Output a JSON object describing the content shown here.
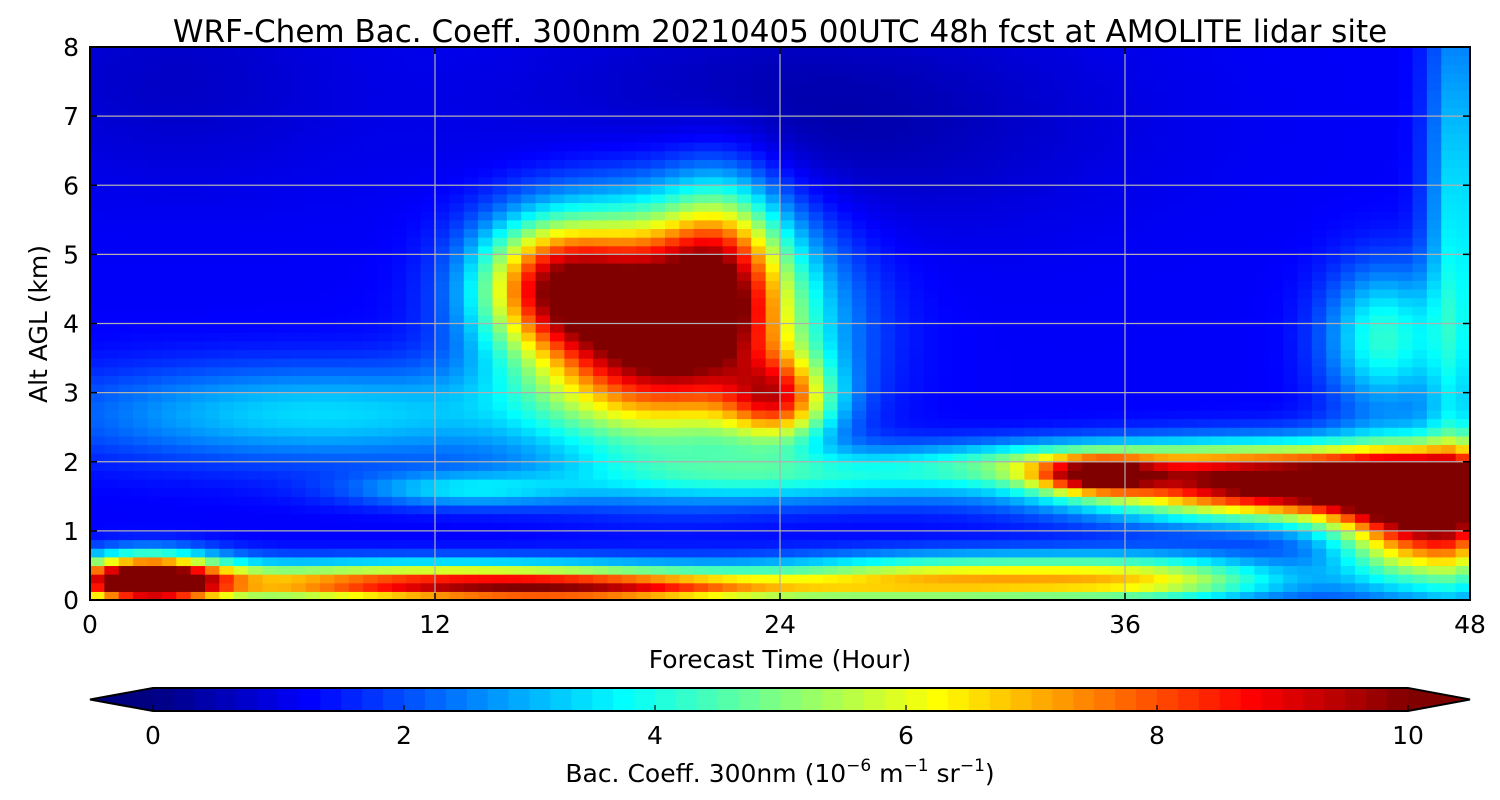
{
  "chart_data": {
    "type": "heatmap",
    "title": "WRF-Chem Bac. Coeff. 300nm  20210405 00UTC 48h fcst at AMOLITE lidar site",
    "xlabel": "Forecast Time (Hour)",
    "ylabel": "Alt AGL (km)",
    "xlim": [
      0,
      48
    ],
    "ylim": [
      0,
      8
    ],
    "xticks": [
      0,
      12,
      24,
      36,
      48
    ],
    "yticks": [
      0,
      1,
      2,
      3,
      4,
      5,
      6,
      7,
      8
    ],
    "grid": true,
    "colormap": "jet",
    "colorbar": {
      "label_main": "Bac. Coeff. 300nm  (10",
      "label_exp1": "−6",
      "label_unit1": " m",
      "label_exp2": "−1",
      "label_unit2": " sr",
      "label_exp3": "−1",
      "label_close": ")",
      "range": [
        0,
        10
      ],
      "ticks": [
        0,
        2,
        4,
        6,
        8,
        10
      ],
      "extend": "both"
    },
    "field_features": [
      {
        "kind": "background",
        "value": 1.2
      },
      {
        "kind": "blob",
        "t": 25,
        "z": 7.0,
        "dt": 10,
        "dz": 1.6,
        "value": -0.8
      },
      {
        "kind": "blob",
        "t": 3,
        "z": 7.5,
        "dt": 6,
        "dz": 1.5,
        "value": -0.5
      },
      {
        "kind": "blob",
        "t": 12,
        "z": 0.25,
        "dt": 12,
        "dz": 0.3,
        "value": 6.5
      },
      {
        "kind": "blob",
        "t": 2,
        "z": 0.3,
        "dt": 2.5,
        "dz": 0.35,
        "value": 9.0
      },
      {
        "kind": "blob",
        "t": 18,
        "z": 0.15,
        "dt": 8,
        "dz": 0.2,
        "value": 3.5
      },
      {
        "kind": "blob",
        "t": 30,
        "z": 0.3,
        "dt": 6,
        "dz": 0.35,
        "value": 4.5
      },
      {
        "kind": "blob",
        "t": 37,
        "z": 0.3,
        "dt": 5,
        "dz": 0.35,
        "value": 4.0
      },
      {
        "kind": "blob",
        "t": 8,
        "z": 2.7,
        "dt": 9,
        "dz": 0.7,
        "value": 2.2
      },
      {
        "kind": "blob",
        "t": 13,
        "z": 1.6,
        "dt": 4,
        "dz": 0.25,
        "value": 2.0
      },
      {
        "kind": "blob",
        "t": 25,
        "z": 1.8,
        "dt": 8,
        "dz": 0.4,
        "value": 2.5
      },
      {
        "kind": "blob",
        "t": 34,
        "z": 2.0,
        "dt": 5,
        "dz": 0.3,
        "value": 2.5
      },
      {
        "kind": "blob",
        "t": 20,
        "z": 4.0,
        "dt": 4.5,
        "dz": 1.5,
        "value": 10.5
      },
      {
        "kind": "blob",
        "t": 16,
        "z": 4.6,
        "dt": 2.5,
        "dz": 0.9,
        "value": 5.0
      },
      {
        "kind": "blob",
        "t": 22,
        "z": 5.0,
        "dt": 2.0,
        "dz": 1.2,
        "value": 3.0
      },
      {
        "kind": "blob",
        "t": 24,
        "z": 2.9,
        "dt": 1.8,
        "dz": 0.6,
        "value": 5.0
      },
      {
        "kind": "blob",
        "t": 42,
        "z": 1.7,
        "dt": 7,
        "dz": 0.5,
        "value": 10.0
      },
      {
        "kind": "blob",
        "t": 46.5,
        "z": 1.2,
        "dt": 3.0,
        "dz": 0.9,
        "value": 8.0
      },
      {
        "kind": "blob",
        "t": 35,
        "z": 1.8,
        "dt": 2.0,
        "dz": 0.25,
        "value": 5.0
      },
      {
        "kind": "blob",
        "t": 45,
        "z": 3.8,
        "dt": 2.0,
        "dz": 1.0,
        "value": 3.0
      },
      {
        "kind": "blob",
        "t": 47.5,
        "z": 5.0,
        "dt": 1.0,
        "dz": 4.0,
        "value": 2.5
      }
    ]
  }
}
